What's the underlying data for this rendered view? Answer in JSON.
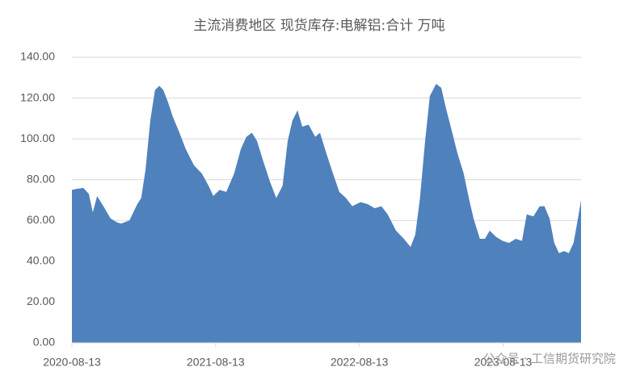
{
  "chart_data": {
    "type": "area",
    "title": "主流消费地区 现货库存:电解铝:合计 万吨",
    "watermark": "公众号 · 工信期货研究院",
    "color": "#4f81bd",
    "grid": true,
    "x": [
      "2020-08-13",
      "2020-08-25",
      "2020-09-11",
      "2020-09-25",
      "2020-10-05",
      "2020-10-16",
      "2020-11-01",
      "2020-11-19",
      "2020-12-06",
      "2020-12-16",
      "2021-01-06",
      "2021-01-26",
      "2021-02-05",
      "2021-02-16",
      "2021-02-28",
      "2021-03-12",
      "2021-03-23",
      "2021-04-02",
      "2021-04-14",
      "2021-04-26",
      "2021-05-13",
      "2021-05-29",
      "2021-06-19",
      "2021-07-09",
      "2021-07-26",
      "2021-08-07",
      "2021-08-23",
      "2021-09-09",
      "2021-09-29",
      "2021-10-16",
      "2021-10-30",
      "2021-11-13",
      "2021-11-26",
      "2021-12-12",
      "2021-12-29",
      "2022-01-14",
      "2022-01-30",
      "2022-02-12",
      "2022-02-24",
      "2022-03-09",
      "2022-03-21",
      "2022-04-06",
      "2022-04-23",
      "2022-05-05",
      "2022-05-21",
      "2022-06-07",
      "2022-06-23",
      "2022-07-10",
      "2022-07-26",
      "2022-08-16",
      "2022-09-03",
      "2022-09-21",
      "2022-10-08",
      "2022-10-24",
      "2022-11-14",
      "2022-12-04",
      "2022-12-21",
      "2023-01-02",
      "2023-01-14",
      "2023-01-27",
      "2023-02-08",
      "2023-02-24",
      "2023-03-09",
      "2023-03-21",
      "2023-04-06",
      "2023-04-19",
      "2023-05-05",
      "2023-05-18",
      "2023-05-30",
      "2023-06-15",
      "2023-06-28",
      "2023-07-10",
      "2023-07-26",
      "2023-08-12",
      "2023-08-28",
      "2023-09-14",
      "2023-09-30",
      "2023-10-12",
      "2023-10-29",
      "2023-11-14",
      "2023-11-26",
      "2023-12-09",
      "2023-12-21",
      "2024-01-02",
      "2024-01-15",
      "2024-01-27",
      "2024-02-08",
      "2024-02-21",
      "2024-02-27"
    ],
    "values": [
      75,
      75.5,
      76,
      73,
      64,
      72,
      67,
      61,
      59,
      58.5,
      60,
      68,
      71,
      85,
      109,
      124,
      126,
      124,
      118,
      111,
      103,
      95,
      87,
      83,
      77,
      72,
      75,
      74,
      83,
      95,
      101,
      103,
      99,
      89,
      79,
      71,
      77,
      99,
      109,
      114,
      106,
      107,
      101,
      103,
      93,
      83,
      74,
      71,
      67,
      69,
      68,
      66,
      67,
      63,
      55,
      51,
      47,
      53,
      71,
      99,
      121,
      127,
      125,
      115,
      103,
      93,
      83,
      71,
      61,
      51,
      51,
      55,
      52,
      50,
      49,
      51,
      50,
      63,
      62,
      67,
      67,
      61,
      49,
      44,
      45,
      44,
      49,
      63,
      70
    ],
    "xlim": [
      "2020-08-13",
      "2024-02-27"
    ],
    "xticks": [
      "2020-08-13",
      "2021-08-13",
      "2022-08-13",
      "2023-08-13"
    ],
    "ylim": [
      0,
      140
    ],
    "yticks": [
      {
        "value": 0,
        "label": "0.00"
      },
      {
        "value": 20,
        "label": "20.00"
      },
      {
        "value": 40,
        "label": "40.00"
      },
      {
        "value": 60,
        "label": "60.00"
      },
      {
        "value": 80,
        "label": "80.00"
      },
      {
        "value": 100,
        "label": "100.00"
      },
      {
        "value": 120,
        "label": "120.00"
      },
      {
        "value": 140,
        "label": "140.00"
      }
    ]
  }
}
